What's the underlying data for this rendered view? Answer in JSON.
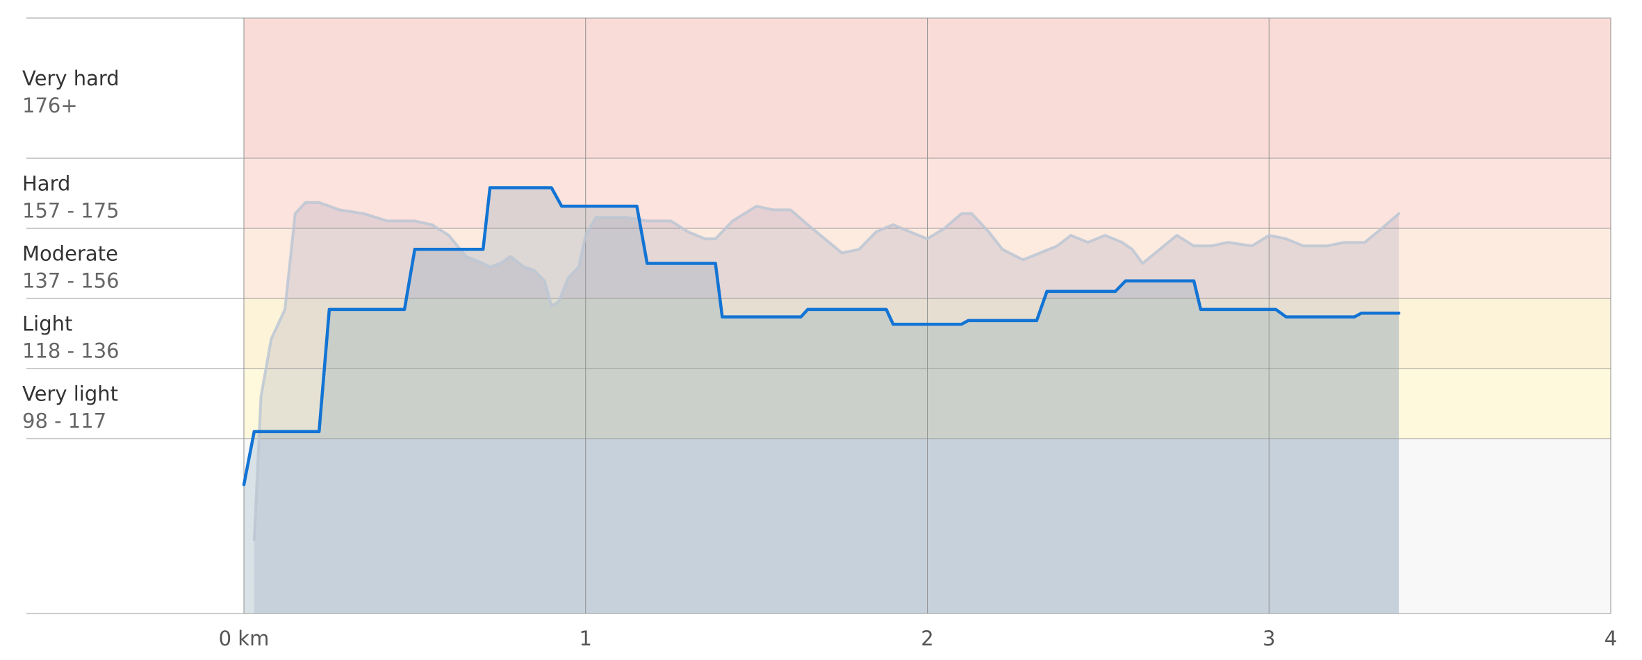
{
  "chart_data": {
    "type": "line",
    "x_unit": "km",
    "xlim": [
      0,
      4
    ],
    "x_ticks": [
      {
        "value": 0,
        "label": "0 km"
      },
      {
        "value": 1,
        "label": "1"
      },
      {
        "value": 2,
        "label": "2"
      },
      {
        "value": 3,
        "label": "3"
      },
      {
        "value": 4,
        "label": "4"
      }
    ],
    "ylim": [
      60,
      200
    ],
    "zones": [
      {
        "name": "Very hard",
        "range": "176+",
        "min": 176,
        "max": 200,
        "color": "#f9dcd7"
      },
      {
        "name": "Hard",
        "range": "157 - 175",
        "min": 157,
        "max": 176,
        "color": "#fde3dd"
      },
      {
        "name": "Moderate",
        "range": "137 - 156",
        "min": 137,
        "max": 157,
        "color": "#fdebe0"
      },
      {
        "name": "Light",
        "range": "118 - 136",
        "min": 118,
        "max": 137,
        "color": "#fdf3d9"
      },
      {
        "name": "Very light",
        "range": "98 - 117",
        "min": 98,
        "max": 118,
        "color": "#fef8dc"
      },
      {
        "name": "",
        "range": "",
        "min": 60,
        "max": 98,
        "color": "#f8f8f8"
      }
    ],
    "series": [
      {
        "color": "#1274d4",
        "style": "step",
        "points": [
          [
            0.0,
            88
          ],
          [
            0.03,
            100
          ],
          [
            0.22,
            100
          ],
          [
            0.25,
            134
          ],
          [
            0.47,
            134
          ],
          [
            0.5,
            151
          ],
          [
            0.7,
            151
          ],
          [
            0.72,
            168
          ],
          [
            0.9,
            168
          ],
          [
            0.93,
            163
          ],
          [
            1.15,
            163
          ],
          [
            1.18,
            147
          ],
          [
            1.38,
            147
          ],
          [
            1.4,
            132
          ],
          [
            1.63,
            132
          ],
          [
            1.65,
            134
          ],
          [
            1.88,
            134
          ],
          [
            1.9,
            130
          ],
          [
            2.1,
            130
          ],
          [
            2.12,
            131
          ],
          [
            2.32,
            131
          ],
          [
            2.35,
            139
          ],
          [
            2.55,
            139
          ],
          [
            2.58,
            142
          ],
          [
            2.78,
            142
          ],
          [
            2.8,
            134
          ],
          [
            3.02,
            134
          ],
          [
            3.05,
            132
          ],
          [
            3.25,
            132
          ],
          [
            3.27,
            133
          ],
          [
            3.38,
            133
          ]
        ]
      },
      {
        "color": "#bcc7d4",
        "style": "line",
        "points": [
          [
            0.03,
            76
          ],
          [
            0.05,
            110
          ],
          [
            0.08,
            126
          ],
          [
            0.12,
            134
          ],
          [
            0.15,
            161
          ],
          [
            0.18,
            164
          ],
          [
            0.22,
            164
          ],
          [
            0.28,
            162
          ],
          [
            0.35,
            161
          ],
          [
            0.42,
            159
          ],
          [
            0.5,
            159
          ],
          [
            0.55,
            158
          ],
          [
            0.6,
            155
          ],
          [
            0.65,
            149
          ],
          [
            0.7,
            147
          ],
          [
            0.72,
            146
          ],
          [
            0.75,
            147
          ],
          [
            0.78,
            149
          ],
          [
            0.82,
            146
          ],
          [
            0.85,
            145
          ],
          [
            0.88,
            142
          ],
          [
            0.9,
            135
          ],
          [
            0.92,
            136
          ],
          [
            0.95,
            143
          ],
          [
            0.98,
            146
          ],
          [
            1.0,
            155
          ],
          [
            1.03,
            160
          ],
          [
            1.08,
            160
          ],
          [
            1.12,
            160
          ],
          [
            1.18,
            159
          ],
          [
            1.25,
            159
          ],
          [
            1.3,
            156
          ],
          [
            1.35,
            154
          ],
          [
            1.38,
            154
          ],
          [
            1.43,
            159
          ],
          [
            1.5,
            163
          ],
          [
            1.55,
            162
          ],
          [
            1.6,
            162
          ],
          [
            1.65,
            158
          ],
          [
            1.7,
            154
          ],
          [
            1.75,
            150
          ],
          [
            1.8,
            151
          ],
          [
            1.85,
            156
          ],
          [
            1.9,
            158
          ],
          [
            1.95,
            156
          ],
          [
            2.0,
            154
          ],
          [
            2.05,
            157
          ],
          [
            2.1,
            161
          ],
          [
            2.13,
            161
          ],
          [
            2.18,
            156
          ],
          [
            2.22,
            151
          ],
          [
            2.28,
            148
          ],
          [
            2.33,
            150
          ],
          [
            2.38,
            152
          ],
          [
            2.42,
            155
          ],
          [
            2.47,
            153
          ],
          [
            2.52,
            155
          ],
          [
            2.57,
            153
          ],
          [
            2.6,
            151
          ],
          [
            2.63,
            147
          ],
          [
            2.68,
            151
          ],
          [
            2.73,
            155
          ],
          [
            2.78,
            152
          ],
          [
            2.83,
            152
          ],
          [
            2.88,
            153
          ],
          [
            2.95,
            152
          ],
          [
            3.0,
            155
          ],
          [
            3.05,
            154
          ],
          [
            3.1,
            152
          ],
          [
            3.17,
            152
          ],
          [
            3.22,
            153
          ],
          [
            3.28,
            153
          ],
          [
            3.33,
            157
          ],
          [
            3.38,
            161
          ]
        ]
      }
    ]
  }
}
